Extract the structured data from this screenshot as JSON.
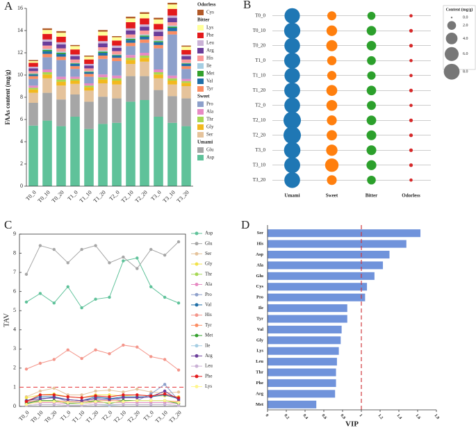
{
  "chart_data": [
    {
      "type": "stacked_bar",
      "panel_label": "A",
      "ylabel": "FAAs content (mg/g)",
      "categories": [
        "T0_0",
        "T0_10",
        "T0_20",
        "T1_0",
        "T1_10",
        "T1_20",
        "T2_0",
        "T2_10",
        "T2_20",
        "T3_0",
        "T3_10",
        "T3_20"
      ],
      "ylim": [
        0,
        16
      ],
      "yticks": [
        0,
        2,
        4,
        6,
        8,
        10,
        12,
        14,
        16
      ],
      "legend_groups": [
        "Odorless",
        "Bitter",
        "Sweet",
        "Umami"
      ],
      "series": [
        {
          "name": "Asp",
          "group": "Umami",
          "color": "#5fc29a",
          "values": [
            5.45,
            5.9,
            5.4,
            6.25,
            5.15,
            5.6,
            5.7,
            7.6,
            7.75,
            6.25,
            5.7,
            5.4
          ]
        },
        {
          "name": "Glu",
          "group": "Umami",
          "color": "#a6a6a6",
          "values": [
            2.05,
            2.5,
            2.4,
            2.0,
            2.45,
            2.45,
            2.2,
            2.3,
            2.15,
            2.4,
            2.4,
            2.5
          ]
        },
        {
          "name": "Ser",
          "group": "Sweet",
          "color": "#e5c39b",
          "values": [
            0.9,
            1.3,
            1.25,
            0.95,
            1.0,
            1.2,
            1.25,
            1.1,
            1.3,
            1.05,
            1.05,
            1.1
          ]
        },
        {
          "name": "Gly",
          "group": "Sweet",
          "color": "#f2b91f",
          "values": [
            0.3,
            0.35,
            0.35,
            0.3,
            0.3,
            0.35,
            0.35,
            0.35,
            0.35,
            0.35,
            0.35,
            0.3
          ]
        },
        {
          "name": "Thr",
          "group": "Sweet",
          "color": "#a6d854",
          "values": [
            0.15,
            0.2,
            0.2,
            0.15,
            0.15,
            0.2,
            0.2,
            0.2,
            0.2,
            0.2,
            0.2,
            0.15
          ]
        },
        {
          "name": "Ala",
          "group": "Sweet",
          "color": "#e78ac3",
          "values": [
            0.2,
            0.25,
            0.25,
            0.2,
            0.2,
            0.25,
            0.25,
            0.25,
            0.25,
            0.25,
            0.25,
            0.2
          ]
        },
        {
          "name": "Pro",
          "group": "Sweet",
          "color": "#8da0cb",
          "values": [
            0.6,
            1.1,
            1.5,
            0.7,
            0.6,
            1.4,
            1.3,
            0.8,
            0.9,
            1.9,
            3.7,
            0.9
          ]
        },
        {
          "name": "Tyr",
          "group": "Bitter",
          "color": "#fc8d62",
          "values": [
            0.25,
            0.3,
            0.3,
            0.25,
            0.25,
            0.3,
            0.3,
            0.3,
            0.3,
            0.3,
            0.3,
            0.25
          ]
        },
        {
          "name": "Val",
          "group": "Bitter",
          "color": "#1f6fa8",
          "values": [
            0.15,
            0.25,
            0.25,
            0.2,
            0.15,
            0.25,
            0.2,
            0.25,
            0.25,
            0.25,
            0.3,
            0.2
          ]
        },
        {
          "name": "Met",
          "group": "Bitter",
          "color": "#33a02c",
          "values": [
            0.05,
            0.1,
            0.1,
            0.05,
            0.05,
            0.1,
            0.05,
            0.1,
            0.1,
            0.1,
            0.1,
            0.05
          ]
        },
        {
          "name": "Ile",
          "group": "Bitter",
          "color": "#a6cee3",
          "values": [
            0.05,
            0.1,
            0.1,
            0.05,
            0.05,
            0.1,
            0.05,
            0.1,
            0.1,
            0.1,
            0.1,
            0.05
          ]
        },
        {
          "name": "His",
          "group": "Bitter",
          "color": "#fb9a99",
          "values": [
            0.2,
            0.3,
            0.3,
            0.3,
            0.25,
            0.3,
            0.3,
            0.3,
            0.35,
            0.35,
            0.3,
            0.3
          ]
        },
        {
          "name": "Arg",
          "group": "Bitter",
          "color": "#6a3d9a",
          "values": [
            0.25,
            0.35,
            0.35,
            0.3,
            0.25,
            0.35,
            0.3,
            0.35,
            0.35,
            0.4,
            0.4,
            0.3
          ]
        },
        {
          "name": "Leu",
          "group": "Bitter",
          "color": "#cab2d6",
          "values": [
            0.15,
            0.2,
            0.2,
            0.15,
            0.15,
            0.2,
            0.2,
            0.2,
            0.2,
            0.2,
            0.2,
            0.15
          ]
        },
        {
          "name": "Phe",
          "group": "Bitter",
          "color": "#e31a1c",
          "values": [
            0.35,
            0.5,
            0.5,
            0.45,
            0.4,
            0.5,
            0.45,
            0.55,
            0.55,
            0.5,
            0.6,
            0.4
          ]
        },
        {
          "name": "Lys",
          "group": "Bitter",
          "color": "#ffff99",
          "values": [
            0.15,
            0.35,
            0.35,
            0.3,
            0.25,
            0.35,
            0.3,
            0.35,
            0.4,
            0.4,
            0.4,
            0.3
          ]
        },
        {
          "name": "Cys",
          "group": "Odorless",
          "color": "#b15928",
          "values": [
            0.1,
            0.15,
            0.15,
            0.1,
            0.1,
            0.15,
            0.1,
            0.15,
            0.15,
            0.15,
            0.15,
            0.1
          ]
        }
      ]
    },
    {
      "type": "bubble",
      "panel_label": "B",
      "categories": [
        "T0_0",
        "T0_10",
        "T0_20",
        "T1_0",
        "T1_10",
        "T1_20",
        "T2_0",
        "T2_10",
        "T2_20",
        "T3_0",
        "T3_10",
        "T3_20"
      ],
      "series": [
        {
          "name": "Umami",
          "color": "#1f77b4",
          "values": [
            7.5,
            8.4,
            7.8,
            8.25,
            7.6,
            8.05,
            7.9,
            9.9,
            9.9,
            8.65,
            8.1,
            7.9
          ]
        },
        {
          "name": "Sweet",
          "color": "#ff7f0e",
          "values": [
            2.15,
            3.2,
            3.55,
            2.3,
            2.25,
            3.4,
            3.35,
            2.7,
            3.0,
            3.75,
            5.55,
            2.65
          ]
        },
        {
          "name": "Bitter",
          "color": "#2ca02c",
          "values": [
            1.6,
            2.45,
            2.45,
            2.05,
            1.8,
            2.45,
            2.15,
            2.5,
            2.6,
            2.6,
            2.7,
            2.0
          ]
        },
        {
          "name": "Odorless",
          "color": "#d62728",
          "values": [
            0.1,
            0.15,
            0.15,
            0.1,
            0.1,
            0.15,
            0.1,
            0.15,
            0.15,
            0.15,
            0.15,
            0.1
          ]
        }
      ],
      "size_legend": {
        "title": "Content (mg/g)",
        "values": [
          {
            "value": 0,
            "label": "0.0"
          },
          {
            "value": 2,
            "label": "2.0"
          },
          {
            "value": 4,
            "label": "4.0"
          },
          {
            "value": 6,
            "label": "6.0"
          },
          {
            "value": 8,
            "label": "8.0"
          }
        ]
      }
    },
    {
      "type": "line",
      "panel_label": "C",
      "ylabel": "TAV",
      "categories": [
        "T0_0",
        "T0_10",
        "T0_20",
        "T1_0",
        "T1_10",
        "T1_20",
        "T2_0",
        "T2_10",
        "T2_20",
        "T3_0",
        "T3_10",
        "T3_20"
      ],
      "ylim": [
        0,
        9
      ],
      "yticks": [
        0,
        1,
        2,
        3,
        4,
        5,
        6,
        7,
        8,
        9
      ],
      "reference_line": 1,
      "series": [
        {
          "name": "Asp",
          "color": "#5fc29a",
          "values": [
            5.45,
            5.9,
            5.4,
            6.25,
            5.15,
            5.6,
            5.7,
            7.6,
            7.75,
            6.25,
            5.7,
            5.4
          ]
        },
        {
          "name": "Glu",
          "color": "#a6a6a6",
          "values": [
            6.9,
            8.4,
            8.2,
            7.5,
            8.2,
            8.4,
            7.5,
            7.8,
            7.2,
            8.2,
            7.9,
            8.6
          ]
        },
        {
          "name": "Ser",
          "color": "#e5c39b",
          "values": [
            0.5,
            0.8,
            0.95,
            0.6,
            0.6,
            0.8,
            0.85,
            0.75,
            0.9,
            0.75,
            0.7,
            0.75
          ]
        },
        {
          "name": "Gly",
          "color": "#f2e34b",
          "values": [
            0.45,
            0.6,
            0.65,
            0.5,
            0.45,
            0.6,
            0.6,
            0.55,
            0.6,
            0.55,
            0.55,
            0.5
          ]
        },
        {
          "name": "Thr",
          "color": "#a6d854",
          "values": [
            0.05,
            0.1,
            0.1,
            0.05,
            0.05,
            0.1,
            0.1,
            0.1,
            0.1,
            0.1,
            0.1,
            0.05
          ]
        },
        {
          "name": "Ala",
          "color": "#e78ac3",
          "values": [
            0.15,
            0.2,
            0.2,
            0.15,
            0.15,
            0.2,
            0.2,
            0.2,
            0.2,
            0.2,
            0.2,
            0.15
          ]
        },
        {
          "name": "Pro",
          "color": "#8da0cb",
          "values": [
            0.2,
            0.35,
            0.5,
            0.25,
            0.2,
            0.45,
            0.45,
            0.3,
            0.3,
            0.65,
            1.15,
            0.3
          ]
        },
        {
          "name": "Val",
          "color": "#1f6fa8",
          "values": [
            0.3,
            0.5,
            0.5,
            0.35,
            0.3,
            0.5,
            0.4,
            0.5,
            0.5,
            0.5,
            0.6,
            0.4
          ]
        },
        {
          "name": "His",
          "color": "#f4958a",
          "values": [
            1.95,
            2.25,
            2.45,
            2.95,
            2.5,
            2.95,
            2.75,
            3.2,
            3.1,
            2.6,
            2.45,
            1.9
          ]
        },
        {
          "name": "Tyr",
          "color": "#fc8d62",
          "values": [
            0.25,
            0.3,
            0.3,
            0.25,
            0.25,
            0.3,
            0.3,
            0.3,
            0.3,
            0.3,
            0.3,
            0.25
          ]
        },
        {
          "name": "Met",
          "color": "#33a02c",
          "values": [
            0.15,
            0.3,
            0.3,
            0.15,
            0.15,
            0.3,
            0.15,
            0.3,
            0.3,
            0.3,
            0.3,
            0.15
          ]
        },
        {
          "name": "Ile",
          "color": "#a6cee3",
          "values": [
            0.05,
            0.1,
            0.1,
            0.05,
            0.05,
            0.1,
            0.05,
            0.1,
            0.1,
            0.1,
            0.1,
            0.05
          ]
        },
        {
          "name": "Arg",
          "color": "#6a3d9a",
          "values": [
            0.3,
            0.4,
            0.45,
            0.35,
            0.3,
            0.4,
            0.35,
            0.45,
            0.45,
            0.5,
            0.8,
            0.35
          ]
        },
        {
          "name": "Leu",
          "color": "#cab2d6",
          "values": [
            0.05,
            0.1,
            0.1,
            0.05,
            0.05,
            0.1,
            0.1,
            0.1,
            0.1,
            0.1,
            0.1,
            0.05
          ]
        },
        {
          "name": "Phe",
          "color": "#e31a1c",
          "values": [
            0.25,
            0.6,
            0.6,
            0.5,
            0.45,
            0.55,
            0.5,
            0.6,
            0.6,
            0.55,
            0.65,
            0.45
          ]
        },
        {
          "name": "Lys",
          "color": "#fff68f",
          "values": [
            0.1,
            0.25,
            0.25,
            0.2,
            0.15,
            0.25,
            0.2,
            0.25,
            0.3,
            0.3,
            0.3,
            0.2
          ]
        }
      ]
    },
    {
      "type": "hbar",
      "panel_label": "D",
      "xlabel": "VIP",
      "color": "#7093db",
      "categories": [
        "Ser",
        "His",
        "Asp",
        "Ala",
        "Glu",
        "Cys",
        "Pro",
        "Ile",
        "Tyr",
        "Val",
        "Gly",
        "Lys",
        "Leu",
        "Thr",
        "Phe",
        "Arg",
        "Met"
      ],
      "values": [
        1.63,
        1.48,
        1.3,
        1.23,
        1.14,
        1.06,
        1.04,
        0.85,
        0.85,
        0.79,
        0.78,
        0.76,
        0.74,
        0.73,
        0.73,
        0.72,
        0.52
      ],
      "xlim": [
        0,
        1.8
      ],
      "xticks": [
        0,
        0.2,
        0.4,
        0.6,
        0.8,
        1,
        1.2,
        1.4,
        1.6,
        1.8
      ],
      "reference_line": 1
    }
  ]
}
